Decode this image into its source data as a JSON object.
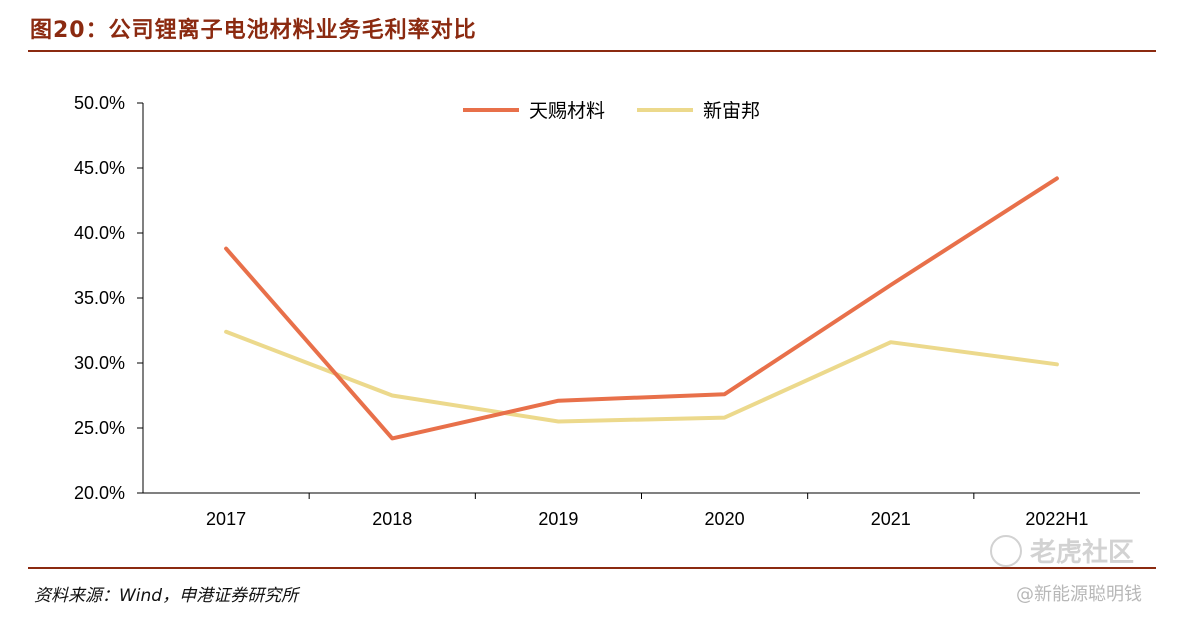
{
  "figure": {
    "title": "图20：公司锂离子电池材料业务毛利率对比",
    "source": "资料来源：Wind，申港证券研究所",
    "watermark": "老虎社区",
    "watermark_sub": "@新能源聪明钱"
  },
  "colors": {
    "brand": "#8b2a10",
    "series_1": "#e8704a",
    "series_2": "#ecd98c",
    "axis": "#000000"
  },
  "chart_data": {
    "type": "line",
    "categories": [
      "2017",
      "2018",
      "2019",
      "2020",
      "2021",
      "2022H1"
    ],
    "series": [
      {
        "name": "天赐材料",
        "values": [
          38.8,
          24.2,
          27.1,
          27.6,
          36.0,
          44.2
        ]
      },
      {
        "name": "新宙邦",
        "values": [
          32.4,
          27.5,
          25.5,
          25.8,
          31.6,
          29.9
        ]
      }
    ],
    "ylim": [
      20,
      50
    ],
    "yticks": [
      "20.0%",
      "25.0%",
      "30.0%",
      "35.0%",
      "40.0%",
      "45.0%",
      "50.0%"
    ],
    "legend_position": "top-center",
    "grid": false
  }
}
